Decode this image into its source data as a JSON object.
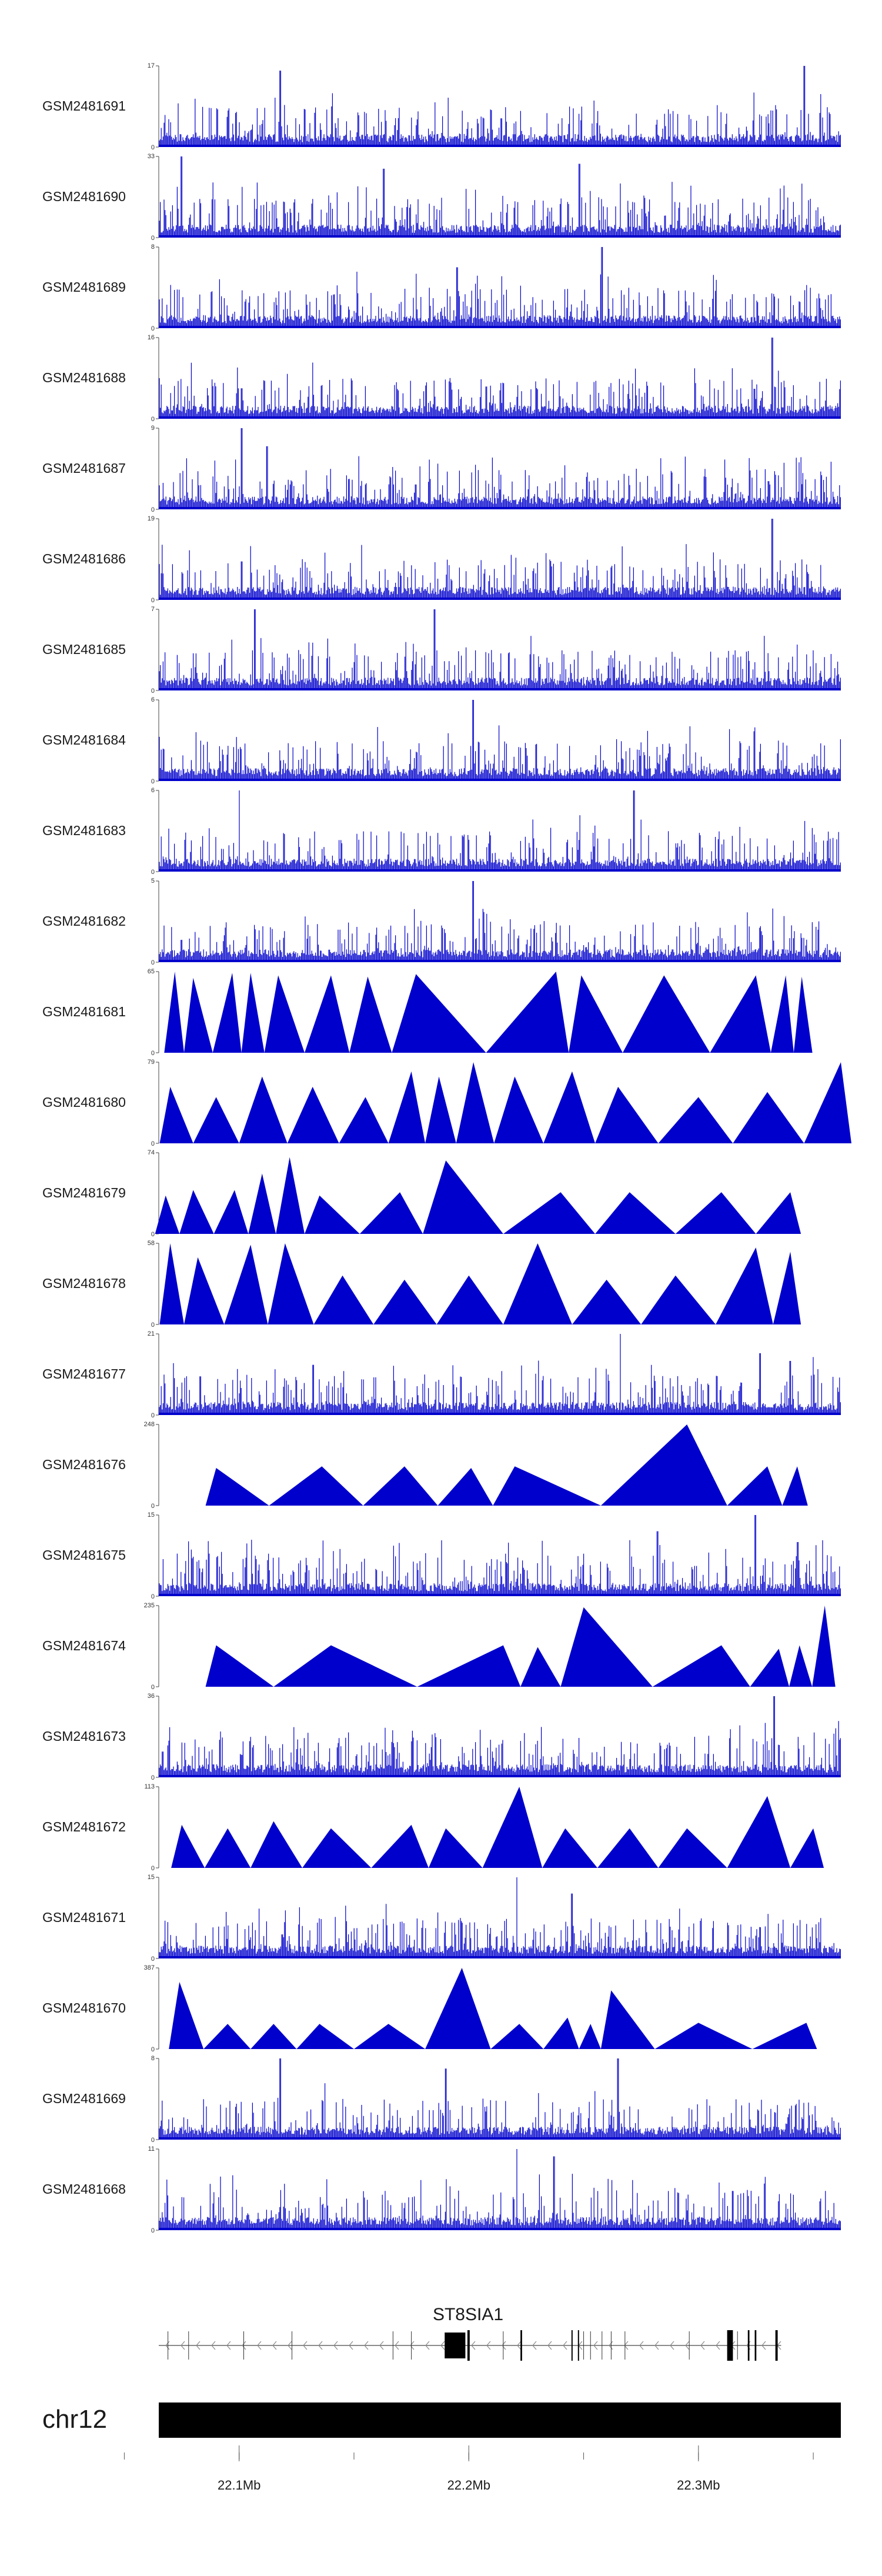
{
  "chart_data": {
    "type": "area",
    "x_unit": "Mb",
    "xlim": [
      22.065,
      22.362
    ],
    "series_color": "#0000cc",
    "tracks": [
      {
        "name": "GSM2481691",
        "ymax": "17",
        "ymin": "0",
        "style": "dense",
        "peaks": [
          [
            22.118,
            16
          ],
          [
            22.214,
            6
          ],
          [
            22.346,
            17
          ]
        ]
      },
      {
        "name": "GSM2481690",
        "ymax": "33",
        "ymin": "0",
        "style": "dense",
        "peaks": [
          [
            22.075,
            33
          ],
          [
            22.163,
            28
          ],
          [
            22.248,
            30
          ]
        ]
      },
      {
        "name": "GSM2481689",
        "ymax": "8",
        "ymin": "0",
        "style": "dense",
        "peaks": [
          [
            22.258,
            8
          ],
          [
            22.195,
            6
          ]
        ]
      },
      {
        "name": "GSM2481688",
        "ymax": "16",
        "ymin": "0",
        "style": "dense",
        "peaks": [
          [
            22.101,
            6
          ],
          [
            22.332,
            16
          ]
        ]
      },
      {
        "name": "GSM2481687",
        "ymax": "9",
        "ymin": "0",
        "style": "dense",
        "peaks": [
          [
            22.101,
            9
          ],
          [
            22.112,
            7
          ]
        ]
      },
      {
        "name": "GSM2481686",
        "ymax": "19",
        "ymin": "0",
        "style": "dense",
        "peaks": [
          [
            22.101,
            9
          ],
          [
            22.332,
            19
          ]
        ]
      },
      {
        "name": "GSM2481685",
        "ymax": "7",
        "ymin": "0",
        "style": "dense",
        "peaks": [
          [
            22.107,
            7
          ],
          [
            22.185,
            7
          ]
        ]
      },
      {
        "name": "GSM2481684",
        "ymax": "6",
        "ymin": "0",
        "style": "dense",
        "peaks": [
          [
            22.202,
            6
          ]
        ]
      },
      {
        "name": "GSM2481683",
        "ymax": "6",
        "ymin": "0",
        "style": "dense",
        "peaks": [
          [
            22.1,
            6
          ],
          [
            22.272,
            6
          ]
        ]
      },
      {
        "name": "GSM2481682",
        "ymax": "5",
        "ymin": "0",
        "style": "dense",
        "peaks": [
          [
            22.202,
            5
          ]
        ]
      },
      {
        "name": "GSM2481681",
        "ymax": "65",
        "ymin": "0",
        "style": "triangles",
        "peaks": [
          [
            22.072,
            65
          ],
          [
            22.08,
            60
          ],
          [
            22.097,
            64
          ],
          [
            22.105,
            64
          ],
          [
            22.117,
            62
          ],
          [
            22.14,
            62
          ],
          [
            22.156,
            61
          ],
          [
            22.177,
            63
          ],
          [
            22.238,
            65
          ],
          [
            22.249,
            62
          ],
          [
            22.285,
            62
          ],
          [
            22.325,
            62
          ],
          [
            22.338,
            62
          ],
          [
            22.345,
            61
          ]
        ]
      },
      {
        "name": "GSM2481680",
        "ymax": "79",
        "ymin": "0",
        "style": "triangles",
        "peaks": [
          [
            22.07,
            55
          ],
          [
            22.09,
            45
          ],
          [
            22.11,
            65
          ],
          [
            22.132,
            55
          ],
          [
            22.155,
            45
          ],
          [
            22.175,
            70
          ],
          [
            22.187,
            65
          ],
          [
            22.202,
            79
          ],
          [
            22.22,
            65
          ],
          [
            22.245,
            70
          ],
          [
            22.265,
            55
          ],
          [
            22.3,
            45
          ],
          [
            22.33,
            50
          ],
          [
            22.362,
            79
          ]
        ]
      },
      {
        "name": "GSM2481679",
        "ymax": "74",
        "ymin": "0",
        "style": "triangles",
        "peaks": [
          [
            22.068,
            35
          ],
          [
            22.08,
            40
          ],
          [
            22.098,
            40
          ],
          [
            22.11,
            55
          ],
          [
            22.122,
            70
          ],
          [
            22.135,
            35
          ],
          [
            22.17,
            38
          ],
          [
            22.19,
            67
          ],
          [
            22.24,
            38
          ],
          [
            22.27,
            38
          ],
          [
            22.31,
            38
          ],
          [
            22.34,
            38
          ]
        ]
      },
      {
        "name": "GSM2481678",
        "ymax": "58",
        "ymin": "0",
        "style": "triangles",
        "peaks": [
          [
            22.07,
            58
          ],
          [
            22.082,
            48
          ],
          [
            22.105,
            57
          ],
          [
            22.12,
            58
          ],
          [
            22.145,
            35
          ],
          [
            22.172,
            32
          ],
          [
            22.2,
            35
          ],
          [
            22.23,
            58
          ],
          [
            22.26,
            32
          ],
          [
            22.29,
            35
          ],
          [
            22.325,
            55
          ],
          [
            22.34,
            52
          ]
        ]
      },
      {
        "name": "GSM2481677",
        "ymax": "21",
        "ymin": "0",
        "style": "dense",
        "peaks": [
          [
            22.083,
            10
          ],
          [
            22.132,
            13
          ],
          [
            22.266,
            21
          ],
          [
            22.327,
            16
          ],
          [
            22.34,
            14
          ],
          [
            22.35,
            15
          ]
        ]
      },
      {
        "name": "GSM2481676",
        "ymax": "248",
        "ymin": "0",
        "style": "triangles",
        "peaks": [
          [
            22.09,
            115
          ],
          [
            22.136,
            120
          ],
          [
            22.172,
            120
          ],
          [
            22.201,
            115
          ],
          [
            22.22,
            120
          ],
          [
            22.295,
            248
          ],
          [
            22.33,
            120
          ],
          [
            22.343,
            120
          ]
        ]
      },
      {
        "name": "GSM2481675",
        "ymax": "15",
        "ymin": "0",
        "style": "dense",
        "peaks": [
          [
            22.282,
            12
          ],
          [
            22.325,
            15
          ],
          [
            22.343,
            10
          ]
        ]
      },
      {
        "name": "GSM2481674",
        "ymax": "235",
        "ymin": "0",
        "style": "triangles",
        "peaks": [
          [
            22.09,
            120
          ],
          [
            22.14,
            120
          ],
          [
            22.215,
            120
          ],
          [
            22.23,
            115
          ],
          [
            22.25,
            230
          ],
          [
            22.31,
            120
          ],
          [
            22.335,
            110
          ],
          [
            22.344,
            120
          ],
          [
            22.355,
            235
          ]
        ]
      },
      {
        "name": "GSM2481673",
        "ymax": "36",
        "ymin": "0",
        "style": "dense",
        "peaks": [
          [
            22.101,
            10
          ],
          [
            22.333,
            36
          ]
        ]
      },
      {
        "name": "GSM2481672",
        "ymax": "113",
        "ymin": "0",
        "style": "triangles",
        "peaks": [
          [
            22.075,
            60
          ],
          [
            22.095,
            55
          ],
          [
            22.115,
            65
          ],
          [
            22.14,
            55
          ],
          [
            22.175,
            60
          ],
          [
            22.19,
            55
          ],
          [
            22.222,
            113
          ],
          [
            22.242,
            55
          ],
          [
            22.27,
            55
          ],
          [
            22.295,
            55
          ],
          [
            22.33,
            100
          ],
          [
            22.35,
            55
          ]
        ]
      },
      {
        "name": "GSM2481671",
        "ymax": "15",
        "ymin": "0",
        "style": "dense",
        "peaks": [
          [
            22.221,
            15
          ],
          [
            22.245,
            12
          ]
        ]
      },
      {
        "name": "GSM2481670",
        "ymax": "387",
        "ymin": "0",
        "style": "triangles",
        "peaks": [
          [
            22.074,
            320
          ],
          [
            22.095,
            120
          ],
          [
            22.115,
            120
          ],
          [
            22.135,
            120
          ],
          [
            22.165,
            120
          ],
          [
            22.197,
            387
          ],
          [
            22.222,
            120
          ],
          [
            22.243,
            150
          ],
          [
            22.253,
            120
          ],
          [
            22.262,
            280
          ],
          [
            22.3,
            125
          ],
          [
            22.347,
            125
          ]
        ]
      },
      {
        "name": "GSM2481669",
        "ymax": "8",
        "ymin": "0",
        "style": "dense",
        "peaks": [
          [
            22.118,
            8
          ],
          [
            22.19,
            7
          ],
          [
            22.265,
            8
          ]
        ]
      },
      {
        "name": "GSM2481668",
        "ymax": "11",
        "ymin": "0",
        "style": "dense",
        "peaks": [
          [
            22.221,
            11
          ],
          [
            22.237,
            10
          ]
        ]
      }
    ],
    "gene": {
      "name": "ST8SIA1",
      "strand": "-",
      "start": 22.065,
      "end": 22.336,
      "exons": [
        [
          22.1895,
          22.1985
        ],
        [
          22.1994,
          22.2004
        ],
        [
          22.2225,
          22.2232
        ],
        [
          22.2447,
          22.2452
        ],
        [
          22.2475,
          22.248
        ],
        [
          22.3125,
          22.315
        ],
        [
          22.3215,
          22.3222
        ],
        [
          22.3245,
          22.3252
        ],
        [
          22.3335,
          22.3345
        ]
      ]
    },
    "chromosome": "chr12",
    "axis_ticks": [
      22.05,
      22.1,
      22.15,
      22.2,
      22.25,
      22.3,
      22.35
    ],
    "axis_tick_labels": [
      "22.1Mb",
      "22.2Mb",
      "22.3Mb"
    ],
    "axis_tick_label_values": [
      22.1,
      22.2,
      22.3
    ]
  }
}
